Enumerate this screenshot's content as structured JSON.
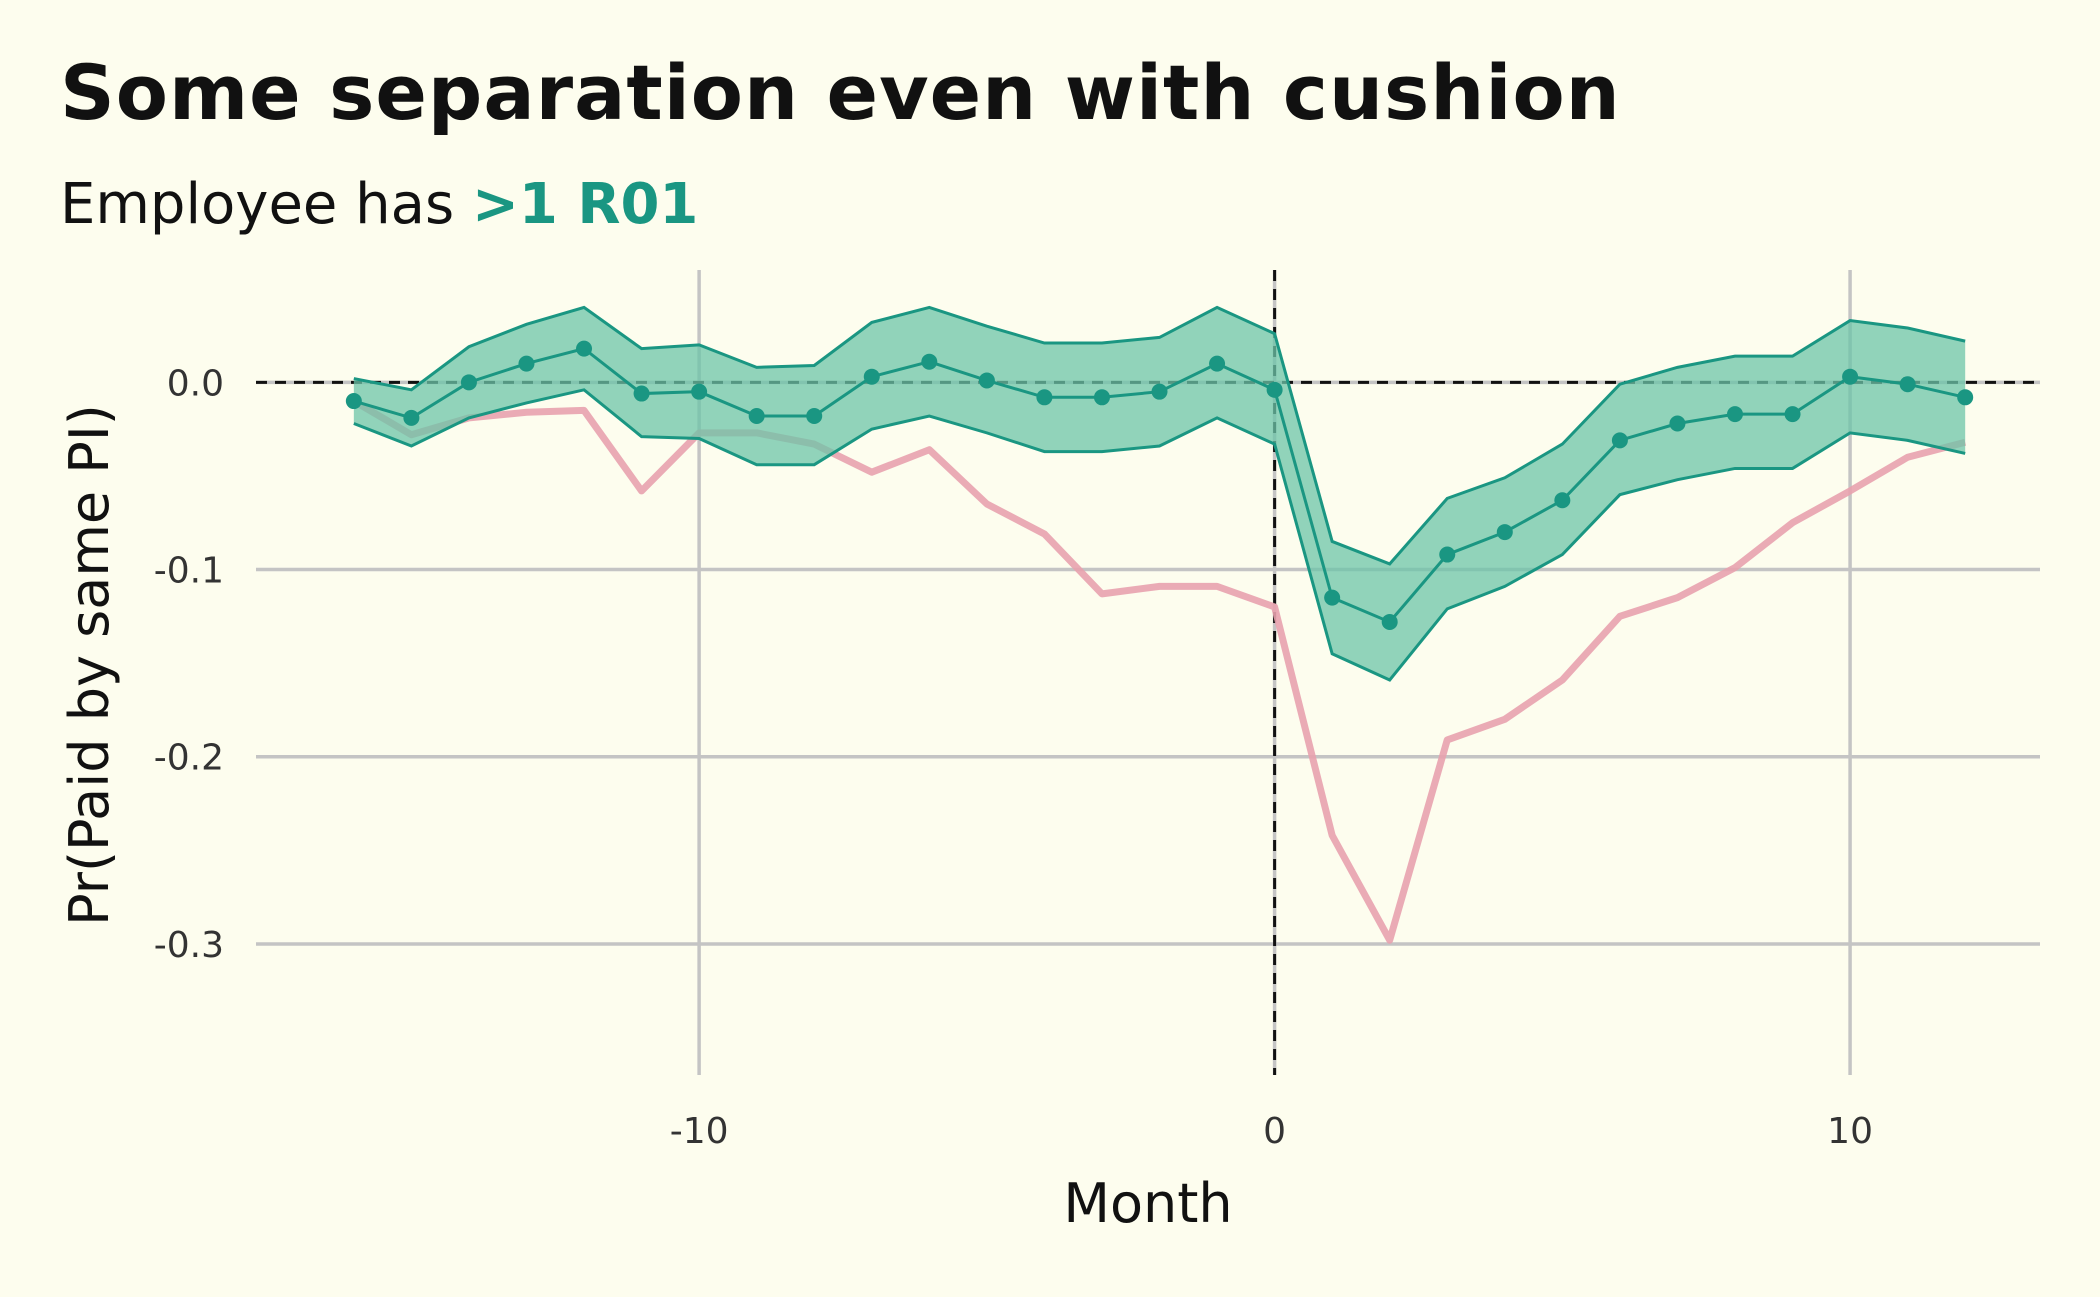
{
  "chart_data": {
    "type": "line",
    "title": "Some separation even with cushion",
    "subtitle_prefix": "Employee has ",
    "subtitle_highlight": ">1 R01",
    "xlabel": "Month",
    "ylabel": "Pr(Paid by same PI)",
    "xlim": [
      -17.7,
      13.3
    ],
    "ylim": [
      -0.37,
      0.06
    ],
    "x_ticks": [
      -10,
      0,
      10
    ],
    "x_tick_labels": [
      "-10",
      "0",
      "10"
    ],
    "y_ticks": [
      0.0,
      -0.1,
      -0.2,
      -0.3
    ],
    "y_tick_labels": [
      "0.0",
      "-0.1",
      "-0.2",
      "-0.3"
    ],
    "grid": true,
    "reference_lines": {
      "y": 0,
      "x": 0
    },
    "x": [
      -16,
      -15,
      -14,
      -13,
      -12,
      -11,
      -10,
      -9,
      -8,
      -7,
      -6,
      -5,
      -4,
      -3,
      -2,
      -1,
      0,
      1,
      2,
      3,
      4,
      5,
      6,
      7,
      8,
      9,
      10,
      11,
      12
    ],
    "series": [
      {
        "values": [
          -0.01,
          -0.028,
          -0.019,
          -0.016,
          -0.015,
          -0.058,
          -0.027,
          -0.027,
          -0.033,
          -0.048,
          -0.036,
          -0.065,
          -0.081,
          -0.113,
          -0.109,
          -0.109,
          -0.12,
          -0.242,
          -0.298,
          -0.191,
          -0.18,
          -0.159,
          -0.125,
          -0.115,
          -0.099,
          -0.075,
          -0.058,
          -0.04,
          -0.032
        ],
        "color": "#e8a2ae"
      },
      {
        "values": [
          -0.01,
          -0.019,
          0.0,
          0.01,
          0.018,
          -0.006,
          -0.005,
          -0.018,
          -0.018,
          0.003,
          0.011,
          0.001,
          -0.008,
          -0.008,
          -0.005,
          0.01,
          -0.004,
          -0.115,
          -0.128,
          -0.092,
          -0.08,
          -0.063,
          -0.031,
          -0.022,
          -0.017,
          -0.017,
          0.003,
          -0.001,
          -0.008
        ],
        "lower": [
          -0.022,
          -0.034,
          -0.019,
          -0.011,
          -0.004,
          -0.029,
          -0.03,
          -0.044,
          -0.044,
          -0.025,
          -0.018,
          -0.027,
          -0.037,
          -0.037,
          -0.034,
          -0.019,
          -0.033,
          -0.145,
          -0.159,
          -0.121,
          -0.109,
          -0.092,
          -0.06,
          -0.052,
          -0.046,
          -0.046,
          -0.027,
          -0.031,
          -0.038
        ],
        "upper": [
          0.002,
          -0.004,
          0.019,
          0.031,
          0.04,
          0.018,
          0.02,
          0.008,
          0.009,
          0.032,
          0.04,
          0.03,
          0.021,
          0.021,
          0.024,
          0.04,
          0.026,
          -0.085,
          -0.097,
          -0.062,
          -0.051,
          -0.033,
          -0.001,
          0.008,
          0.014,
          0.014,
          0.033,
          0.029,
          0.022
        ],
        "color": "#1a9682",
        "band_color": "#6cc4a8"
      }
    ]
  }
}
